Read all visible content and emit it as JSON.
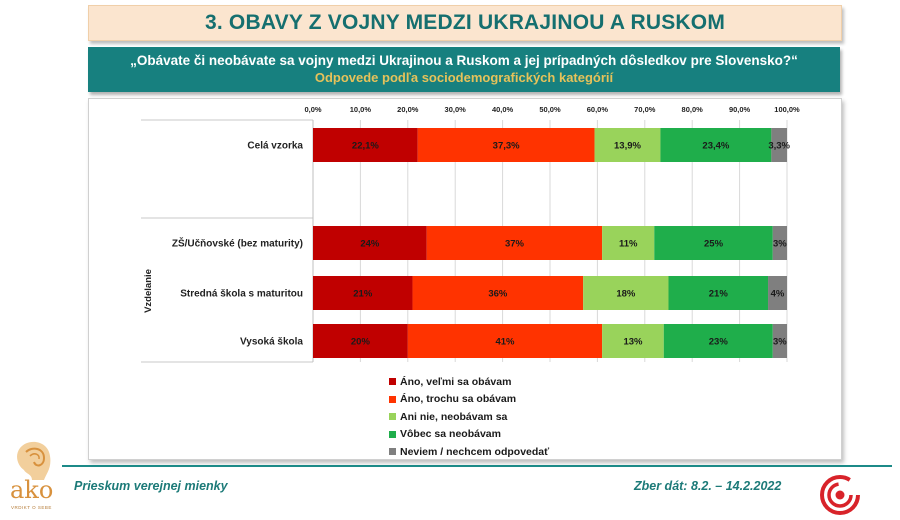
{
  "header": {
    "title": "3. OBAVY Z VOJNY MEDZI UKRAJINOU A RUSKOM",
    "question": "„Obávate či neobávate sa vojny medzi Ukrajinou a Ruskom a jej prípadných dôsledkov pre Slovensko?“",
    "subtitle": "Odpovede podľa sociodemografických kategórií"
  },
  "chart_data": {
    "type": "bar",
    "orientation": "horizontal",
    "stacked": true,
    "percent": true,
    "xlim": [
      0,
      100
    ],
    "x_ticks": [
      "0,0%",
      "10,0%",
      "20,0%",
      "30,0%",
      "40,0%",
      "50,0%",
      "60,0%",
      "70,0%",
      "80,0%",
      "90,0%",
      "100,0%"
    ],
    "group_label": "Vzdelanie",
    "categories": [
      "Celá vzorka",
      "ZŠ/Učňovské (bez maturity)",
      "Stredná škola s maturitou",
      "Vysoká škola"
    ],
    "series": [
      {
        "name": "Áno, veľmi sa obávam",
        "color": "#c00000",
        "values": [
          22.1,
          24,
          21,
          20
        ],
        "labels": [
          "22,1%",
          "24%",
          "21%",
          "20%"
        ]
      },
      {
        "name": "Áno, trochu sa obávam",
        "color": "#ff3300",
        "values": [
          37.3,
          37,
          36,
          41
        ],
        "labels": [
          "37,3%",
          "37%",
          "36%",
          "41%"
        ]
      },
      {
        "name": "Ani nie, neobávam sa",
        "color": "#99d35b",
        "values": [
          13.9,
          11,
          18,
          13
        ],
        "labels": [
          "13,9%",
          "11%",
          "18%",
          "13%"
        ]
      },
      {
        "name": "Vôbec sa neobávam",
        "color": "#1fae4b",
        "values": [
          23.4,
          25,
          21,
          23
        ],
        "labels": [
          "23,4%",
          "25%",
          "21%",
          "23%"
        ]
      },
      {
        "name": "Neviem / nechcem odpovedať",
        "color": "#7f7f7f",
        "values": [
          3.3,
          3,
          4,
          3
        ],
        "labels": [
          "3,3%",
          "3%",
          "4%",
          "3%"
        ]
      }
    ]
  },
  "footer": {
    "left": "Prieskum verejnej mienky",
    "right": "Zber dát: 8.2. – 14.2.2022"
  },
  "logo": {
    "text": "ako",
    "subtext": "VRDIKT O SEBE"
  }
}
